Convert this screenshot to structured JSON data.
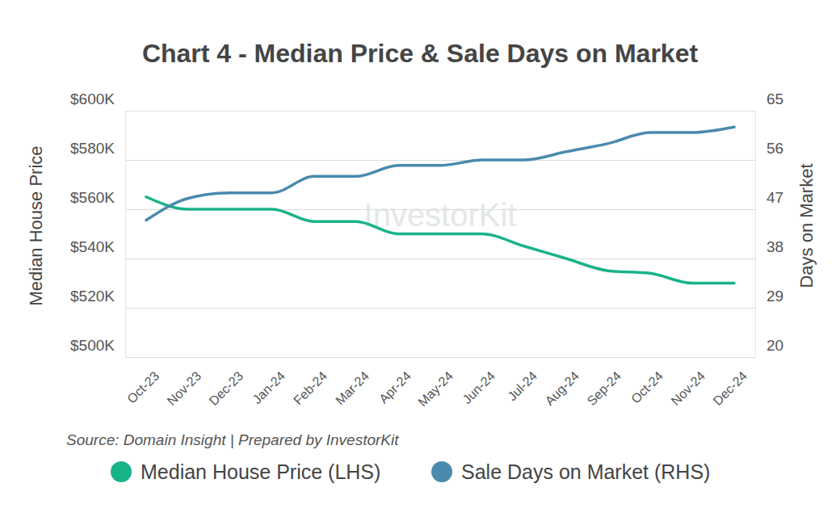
{
  "chart_data": {
    "type": "line",
    "title": "Chart 4 - Median Price & Sale Days on Market",
    "y_label": "Median House Price",
    "y2_label": "Days on Market",
    "source": "Source: Domain Insight | Prepared by InvestorKit",
    "annotations": [
      "InvestorKit"
    ],
    "categories": [
      "Oct-23",
      "Nov-23",
      "Dec-23",
      "Jan-24",
      "Feb-24",
      "Mar-24",
      "Apr-24",
      "May-24",
      "Jun-24",
      "Jul-24",
      "Aug-24",
      "Sep-24",
      "Oct-24",
      "Nov-24",
      "Dec-24"
    ],
    "series": [
      {
        "name": "Median House Price (LHS)",
        "color": "#19b38a",
        "axis": "y",
        "values": [
          565000,
          560000,
          560000,
          560000,
          555000,
          555000,
          550000,
          550000,
          550000,
          545000,
          540000,
          535000,
          534000,
          530000,
          530000
        ]
      },
      {
        "name": "Sale Days on Market (RHS)",
        "color": "#4a8aad",
        "axis": "y2",
        "values": [
          45,
          49,
          50,
          50,
          53,
          53,
          55,
          55,
          56,
          56,
          57.5,
          59,
          61,
          61,
          62
        ]
      }
    ],
    "ylim": [
      500000,
      600000
    ],
    "yticks": [
      {
        "value": 500000,
        "label": "$500K"
      },
      {
        "value": 520000,
        "label": "$520K"
      },
      {
        "value": 540000,
        "label": "$540K"
      },
      {
        "value": 560000,
        "label": "$560K"
      },
      {
        "value": 580000,
        "label": "$580K"
      },
      {
        "value": 600000,
        "label": "$600K"
      }
    ],
    "y2lim": [
      20,
      65
    ],
    "y2ticks": [
      20,
      29,
      38,
      47,
      56,
      65
    ],
    "grid": true,
    "legend": "bottom"
  }
}
